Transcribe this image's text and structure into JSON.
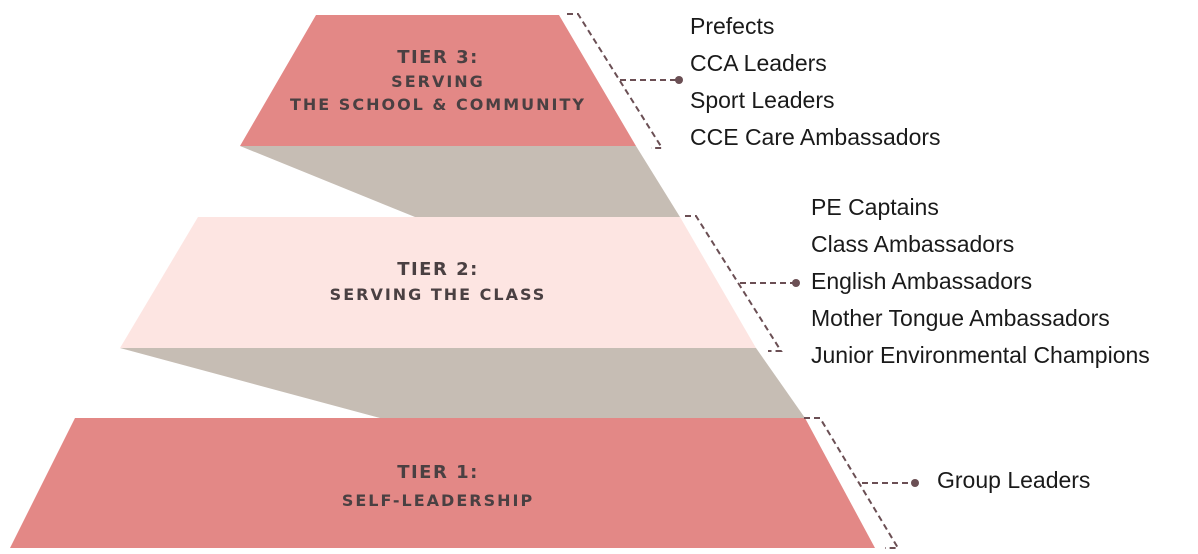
{
  "tiers": [
    {
      "title": "TIER 3:",
      "subtitle": [
        "SERVING",
        "THE SCHOOL & COMMUNITY"
      ],
      "color": "#e38886",
      "roles": [
        "Prefects",
        "CCA Leaders",
        "Sport Leaders",
        "CCE Care Ambassadors"
      ]
    },
    {
      "title": "TIER 2:",
      "subtitle": [
        "SERVING THE CLASS"
      ],
      "color": "#fde5e2",
      "roles": [
        "PE Captains",
        "Class Ambassadors",
        "English Ambassadors",
        "Mother Tongue Ambassadors",
        "Junior Environmental Champions"
      ]
    },
    {
      "title": "TIER 1:",
      "subtitle": [
        "SELF-LEADERSHIP"
      ],
      "color": "#e38886",
      "roles": [
        "Group Leaders"
      ]
    }
  ],
  "colors": {
    "connector": "#c6bdb4",
    "bracket": "#6b4f54"
  }
}
